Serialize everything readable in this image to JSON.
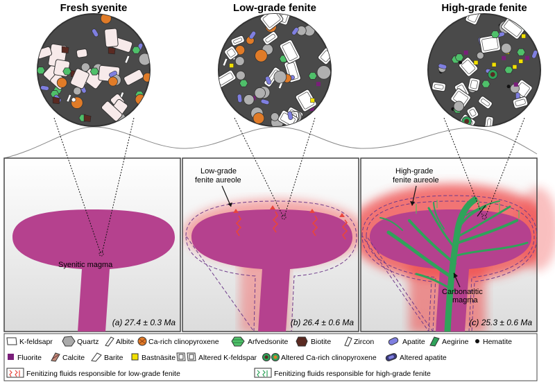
{
  "panels": [
    {
      "title": "Fresh syenite",
      "age": "(a) 27.4 ± 0.3 Ma",
      "annotation": "Syenitic magma",
      "colors": {
        "bg": "#4a4a4a"
      }
    },
    {
      "title": "Low-grade fenite",
      "age": "(b) 26.4 ± 0.6 Ma",
      "annotation": "Low-grade fenite aureole",
      "annotation_lines": [
        "Low-grade",
        "fenite aureole"
      ]
    },
    {
      "title": "High-grade fenite",
      "age": "(c) 25.3 ± 0.6 Ma",
      "annotation_lines": [
        "High-grade",
        "fenite aureole"
      ],
      "annotation2_lines": [
        "Carbonatitic",
        "magma"
      ]
    }
  ],
  "legend": {
    "row1": [
      {
        "label": "K-feldsapr",
        "icon": "k-feldspar-icon"
      },
      {
        "label": "Quartz",
        "icon": "quartz-icon"
      },
      {
        "label": "Albite",
        "icon": "albite-icon"
      },
      {
        "label": "Ca-rich clinopyroxene",
        "icon": "ca-cpx-icon"
      },
      {
        "label": "Arfvedsonite",
        "icon": "arfvedsonite-icon"
      },
      {
        "label": "Biotite",
        "icon": "biotite-icon"
      },
      {
        "label": "Zircon",
        "icon": "zircon-icon"
      },
      {
        "label": "Apatite",
        "icon": "apatite-icon"
      },
      {
        "label": "Aegirine",
        "icon": "aegirine-icon"
      },
      {
        "label": "Hematite",
        "icon": "hematite-icon"
      }
    ],
    "row2": [
      {
        "label": "Fluorite",
        "icon": "fluorite-icon"
      },
      {
        "label": "Calcite",
        "icon": "calcite-icon"
      },
      {
        "label": "Barite",
        "icon": "barite-icon"
      },
      {
        "label": "Bastnäsite",
        "icon": "bastnasite-icon"
      },
      {
        "label": "Altered K-feldspar",
        "icon": "altered-k-feldspar-icon"
      },
      {
        "label": "Altered Ca-rich clinopyroxene",
        "icon": "altered-cpx-icon"
      },
      {
        "label": "Altered apatite",
        "icon": "altered-apatite-icon"
      }
    ],
    "row3": [
      {
        "label": "Fenitizing fluids responsible for low-grade fenite",
        "icon": "low-grade-fluid-icon"
      },
      {
        "label": "Fenitizing fluids responsible for high-grade fenite",
        "icon": "high-grade-fluid-icon"
      }
    ]
  },
  "colors": {
    "magma": "#b5418e",
    "carbonatite": "#2fa35a",
    "halo": "#f26b6b",
    "matrix": "#4a4a4a",
    "cpx": "#e07b28",
    "arfvedsonite": "#4fc06a",
    "apatite": "#7f7fe0",
    "bastnasite": "#f2e000",
    "fluorite": "#7a1e7a",
    "biotite": "#5a2a22",
    "calcite": "#c08a7a"
  }
}
